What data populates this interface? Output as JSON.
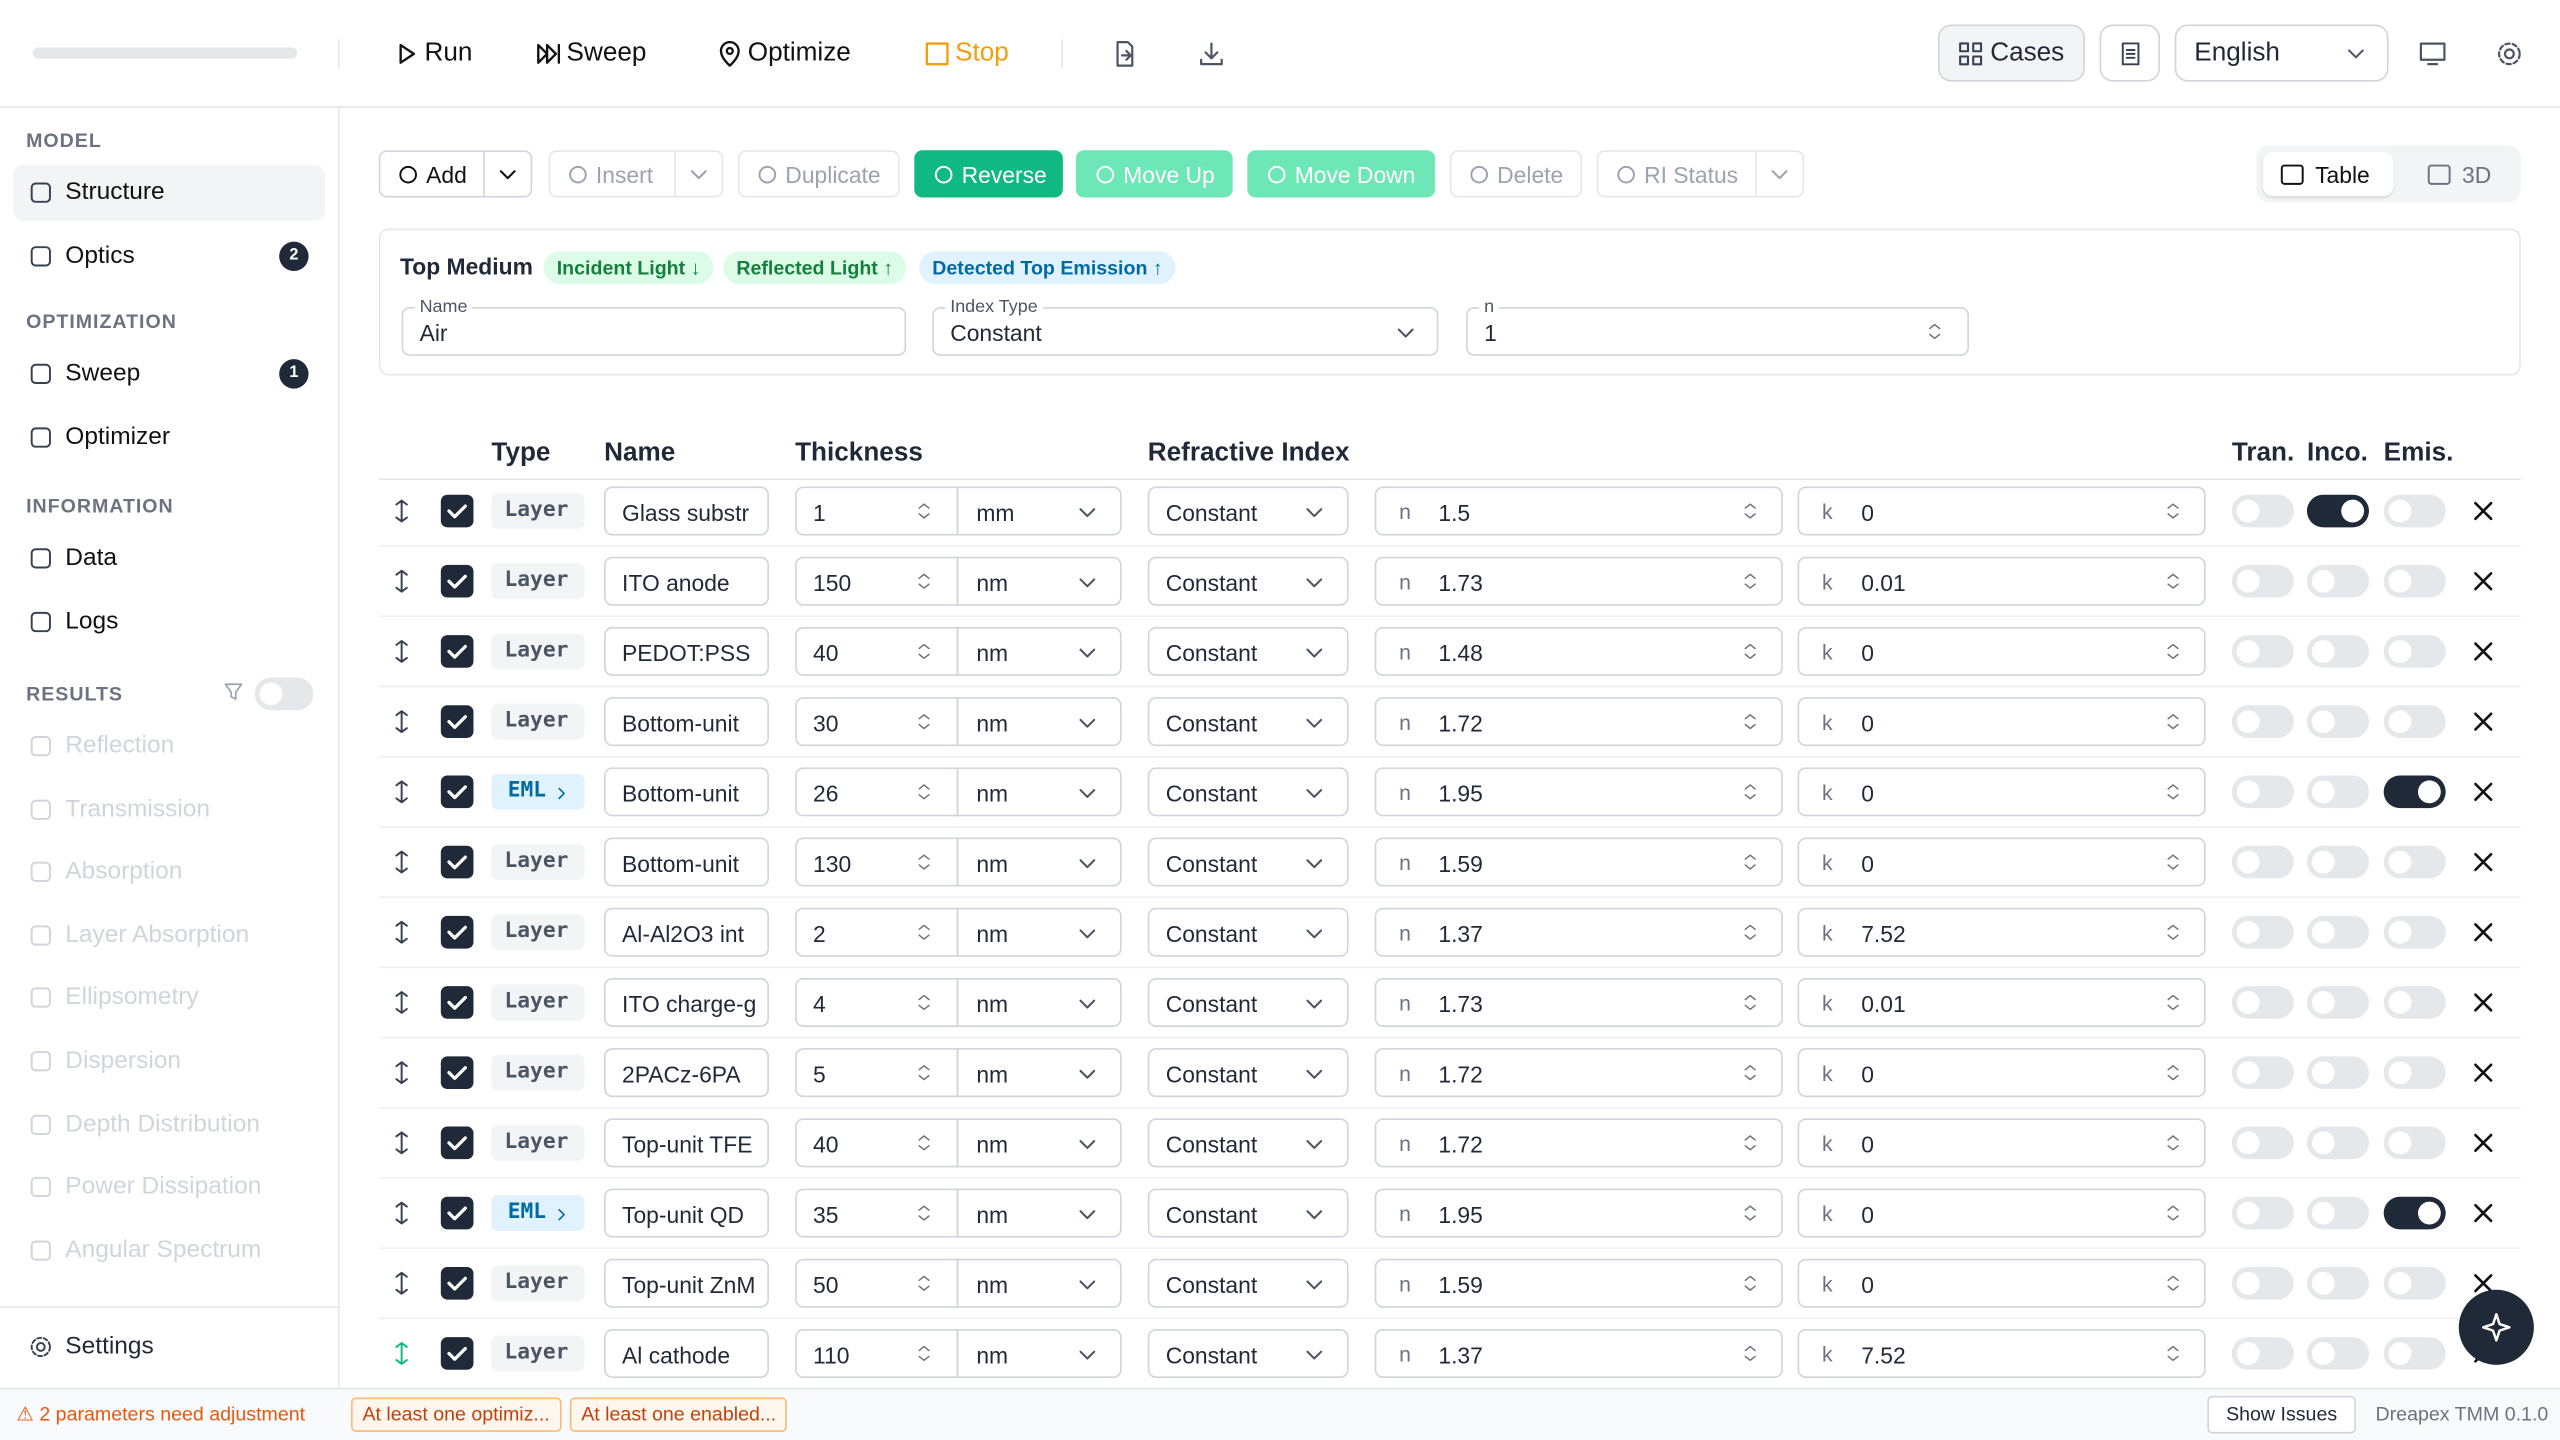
{
  "toolbar": {
    "run": "Run",
    "sweep": "Sweep",
    "optimize": "Optimize",
    "stop": "Stop",
    "cases": "Cases",
    "language": "English"
  },
  "sidebar": {
    "sections": [
      {
        "title": "MODEL",
        "items": [
          {
            "label": "Structure",
            "active": true
          },
          {
            "label": "Optics",
            "badge": 2
          }
        ]
      },
      {
        "title": "OPTIMIZATION",
        "items": [
          {
            "label": "Sweep",
            "badge": 1
          },
          {
            "label": "Optimizer"
          }
        ]
      },
      {
        "title": "INFORMATION",
        "items": [
          {
            "label": "Data"
          },
          {
            "label": "Logs"
          }
        ]
      },
      {
        "title": "RESULTS",
        "disabled": true,
        "items": [
          {
            "label": "Reflection"
          },
          {
            "label": "Transmission"
          },
          {
            "label": "Absorption"
          },
          {
            "label": "Layer Absorption"
          },
          {
            "label": "Ellipsometry"
          },
          {
            "label": "Dispersion"
          },
          {
            "label": "Depth Distribution"
          },
          {
            "label": "Power Dissipation"
          },
          {
            "label": "Angular Spectrum"
          }
        ]
      }
    ],
    "settings": "Settings"
  },
  "actions": [
    {
      "label": "Add",
      "style": "plain",
      "split": true
    },
    {
      "label": "Insert",
      "style": "disabled",
      "split": true
    },
    {
      "label": "Duplicate",
      "style": "disabled"
    },
    {
      "label": "Reverse",
      "style": "primary"
    },
    {
      "label": "Move Up",
      "style": "soft"
    },
    {
      "label": "Move Down",
      "style": "soft"
    },
    {
      "label": "Delete",
      "style": "disabled"
    },
    {
      "label": "RI Status",
      "style": "disabled",
      "split": true
    }
  ],
  "view_tabs": [
    "Table",
    "3D"
  ],
  "top_medium": {
    "title": "Top Medium",
    "tags": [
      {
        "label": "Incident Light ↓",
        "color": "green"
      },
      {
        "label": "Reflected Light ↑",
        "color": "green"
      },
      {
        "label": "Detected Top Emission ↑",
        "color": "blue"
      }
    ],
    "name_label": "Name",
    "name": "Air",
    "index_type_label": "Index Type",
    "index_type": "Constant",
    "n_label": "n",
    "n": 1
  },
  "table": {
    "columns": [
      "Type",
      "Name",
      "Thickness",
      "Refractive Index",
      "Tran.",
      "Inco.",
      "Emis."
    ],
    "n_label": "n",
    "k_label": "k",
    "rows": [
      {
        "type": "Layer",
        "name": "Glass substr",
        "thickness": 1,
        "unit": "mm",
        "index": "Constant",
        "n": 1.5,
        "k": 0,
        "tran": false,
        "inco": true,
        "emis": false
      },
      {
        "type": "Layer",
        "name": "ITO anode",
        "thickness": 150,
        "unit": "nm",
        "index": "Constant",
        "n": 1.73,
        "k": 0.01,
        "tran": false,
        "inco": false,
        "emis": false
      },
      {
        "type": "Layer",
        "name": "PEDOT:PSS",
        "thickness": 40,
        "unit": "nm",
        "index": "Constant",
        "n": 1.48,
        "k": 0,
        "tran": false,
        "inco": false,
        "emis": false
      },
      {
        "type": "Layer",
        "name": "Bottom-unit",
        "thickness": 30,
        "unit": "nm",
        "index": "Constant",
        "n": 1.72,
        "k": 0,
        "tran": false,
        "inco": false,
        "emis": false
      },
      {
        "type": "EML",
        "name": "Bottom-unit",
        "thickness": 26,
        "unit": "nm",
        "index": "Constant",
        "n": 1.95,
        "k": 0,
        "tran": false,
        "inco": false,
        "emis": true
      },
      {
        "type": "Layer",
        "name": "Bottom-unit",
        "thickness": 130,
        "unit": "nm",
        "index": "Constant",
        "n": 1.59,
        "k": 0,
        "tran": false,
        "inco": false,
        "emis": false
      },
      {
        "type": "Layer",
        "name": "Al-Al2O3 int",
        "thickness": 2,
        "unit": "nm",
        "index": "Constant",
        "n": 1.37,
        "k": 7.52,
        "tran": false,
        "inco": false,
        "emis": false
      },
      {
        "type": "Layer",
        "name": "ITO charge-g",
        "thickness": 4,
        "unit": "nm",
        "index": "Constant",
        "n": 1.73,
        "k": 0.01,
        "tran": false,
        "inco": false,
        "emis": false
      },
      {
        "type": "Layer",
        "name": "2PACz-6PA",
        "thickness": 5,
        "unit": "nm",
        "index": "Constant",
        "n": 1.72,
        "k": 0,
        "tran": false,
        "inco": false,
        "emis": false
      },
      {
        "type": "Layer",
        "name": "Top-unit TFE",
        "thickness": 40,
        "unit": "nm",
        "index": "Constant",
        "n": 1.72,
        "k": 0,
        "tran": false,
        "inco": false,
        "emis": false
      },
      {
        "type": "EML",
        "name": "Top-unit QD",
        "thickness": 35,
        "unit": "nm",
        "index": "Constant",
        "n": 1.95,
        "k": 0,
        "tran": false,
        "inco": false,
        "emis": true
      },
      {
        "type": "Layer",
        "name": "Top-unit ZnM",
        "thickness": 50,
        "unit": "nm",
        "index": "Constant",
        "n": 1.59,
        "k": 0,
        "tran": false,
        "inco": false,
        "emis": false
      },
      {
        "type": "Layer",
        "name": "Al cathode",
        "thickness": 110,
        "unit": "nm",
        "index": "Constant",
        "n": 1.37,
        "k": 7.52,
        "tran": false,
        "inco": false,
        "emis": false
      }
    ]
  },
  "status": {
    "warning": "⚠ 2 parameters need adjustment",
    "chips": [
      "At least one optimiz...",
      "At least one enabled..."
    ],
    "button": "Show Issues",
    "version": "Dreapex TMM 0.1.0"
  }
}
